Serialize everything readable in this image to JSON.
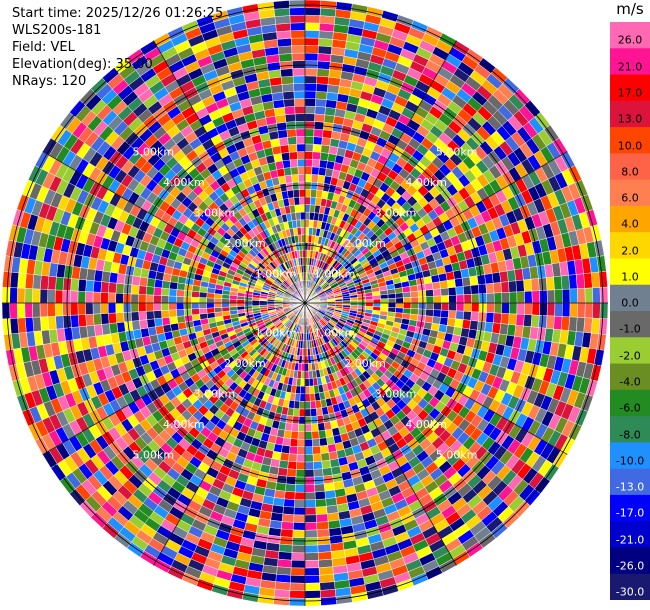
{
  "header": {
    "start_time": "Start time: 2025/12/26 01:26:25",
    "instrument": "WLS200s-181",
    "field": "Field: VEL",
    "elevation": "Elevation(deg): 35.00",
    "nrays": "NRays: 120"
  },
  "colorbar": {
    "unit": "m/s",
    "ticks": [
      "26.0",
      "21.0",
      "17.0",
      "13.0",
      "10.0",
      "8.0",
      "6.0",
      "4.0",
      "2.0",
      "1.0",
      "0.0",
      "-1.0",
      "-2.0",
      "-4.0",
      "-6.0",
      "-8.0",
      "-10.0",
      "-13.0",
      "-17.0",
      "-21.0",
      "-26.0",
      "-30.0"
    ],
    "colors": [
      "#ff69b4",
      "#ff1493",
      "#ff0000",
      "#dc143c",
      "#ff4500",
      "#ff6347",
      "#ff7f50",
      "#ffa500",
      "#ffd700",
      "#ffff00",
      "#708090",
      "#696969",
      "#9acd32",
      "#6b8e23",
      "#228b22",
      "#2e8b57",
      "#1e90ff",
      "#4169e1",
      "#0000ff",
      "#0000cd",
      "#000080",
      "#191970"
    ]
  },
  "chart_data": {
    "type": "heatmap",
    "projection": "PPI polar",
    "field": "VEL",
    "units": "m/s",
    "nrays": 120,
    "elevation_deg": 35.0,
    "range_rings_km": [
      "1.00km",
      "2.00km",
      "3.00km",
      "4.00km",
      "5.00km"
    ],
    "color_scale_min": -30.0,
    "color_scale_max": 26.0
  }
}
